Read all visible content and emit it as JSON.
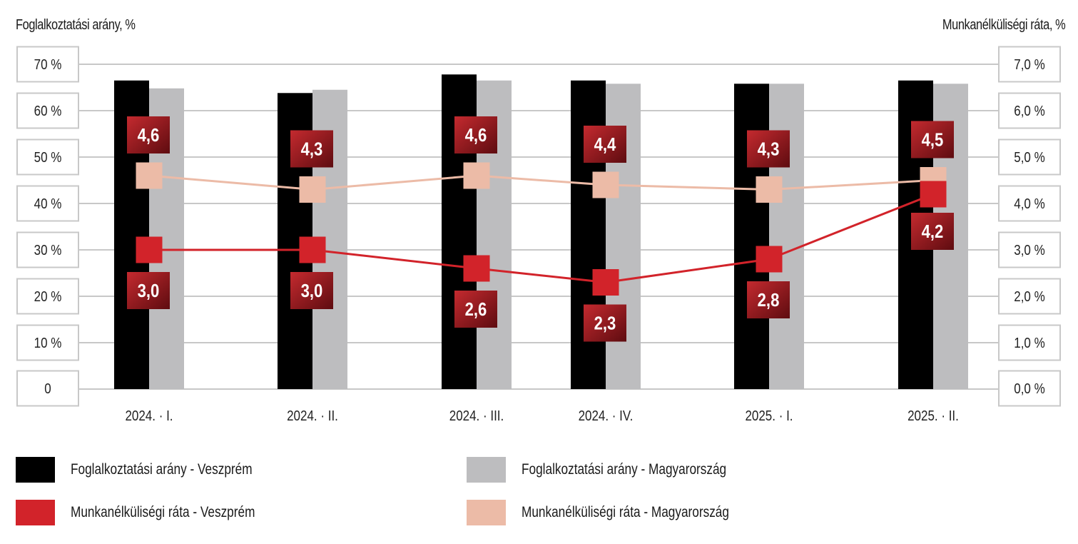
{
  "chart_data": {
    "type": "bar+line",
    "categories": [
      "2024. · I.",
      "2024. · II.",
      "2024. · III.",
      "2024. · IV.",
      "2025. · I.",
      "2025. · II."
    ],
    "y_left": {
      "label": "Foglalkoztatási arány, %",
      "range": [
        0,
        70
      ],
      "ticks": [
        "0",
        "10 %",
        "20 %",
        "30 %",
        "40 %",
        "50 %",
        "60 %",
        "70 %"
      ]
    },
    "y_right": {
      "label": "Munkanélküliségi ráta, %",
      "range": [
        0,
        7
      ],
      "ticks": [
        "0,0 %",
        "1,0 %",
        "2,0 %",
        "3,0 %",
        "4,0 %",
        "5,0 %",
        "6,0 %",
        "7,0 %"
      ]
    },
    "grid": true,
    "bar_series": [
      {
        "name": "Foglalkoztatási arány - Veszprém",
        "color": "#000000",
        "axis": "left",
        "values": [
          66.5,
          63.8,
          67.8,
          66.5,
          65.8,
          66.5
        ]
      },
      {
        "name": "Foglalkoztatási arány - Magyarország",
        "color": "#bdbdbf",
        "axis": "left",
        "values": [
          64.8,
          64.5,
          66.5,
          65.8,
          65.8,
          65.8
        ]
      }
    ],
    "line_series": [
      {
        "name": "Munkanélküliségi ráta - Veszprém",
        "color": "#d2232a",
        "axis": "right",
        "values": [
          3.0,
          3.0,
          2.6,
          2.3,
          2.8,
          4.2
        ],
        "labels": [
          "3,0",
          "3,0",
          "2,6",
          "2,3",
          "2,8",
          "4,2"
        ]
      },
      {
        "name": "Munkanélküliségi ráta - Magyarország",
        "color": "#ecbba7",
        "axis": "right",
        "values": [
          4.6,
          4.3,
          4.6,
          4.4,
          4.3,
          4.5
        ],
        "labels": [
          "4,6",
          "4,3",
          "4,6",
          "4,4",
          "4,3",
          "4,5"
        ]
      }
    ],
    "legend_position": "bottom"
  },
  "legend": [
    {
      "label": "Foglalkoztatási arány - Veszprém",
      "color": "#000000"
    },
    {
      "label": "Foglalkoztatási arány - Magyarország",
      "color": "#bdbdbf"
    },
    {
      "label": "Munkanélküliségi ráta - Veszprém",
      "color": "#d2232a"
    },
    {
      "label": "Munkanélküliségi ráta - Magyarország",
      "color": "#ecbba7"
    }
  ]
}
